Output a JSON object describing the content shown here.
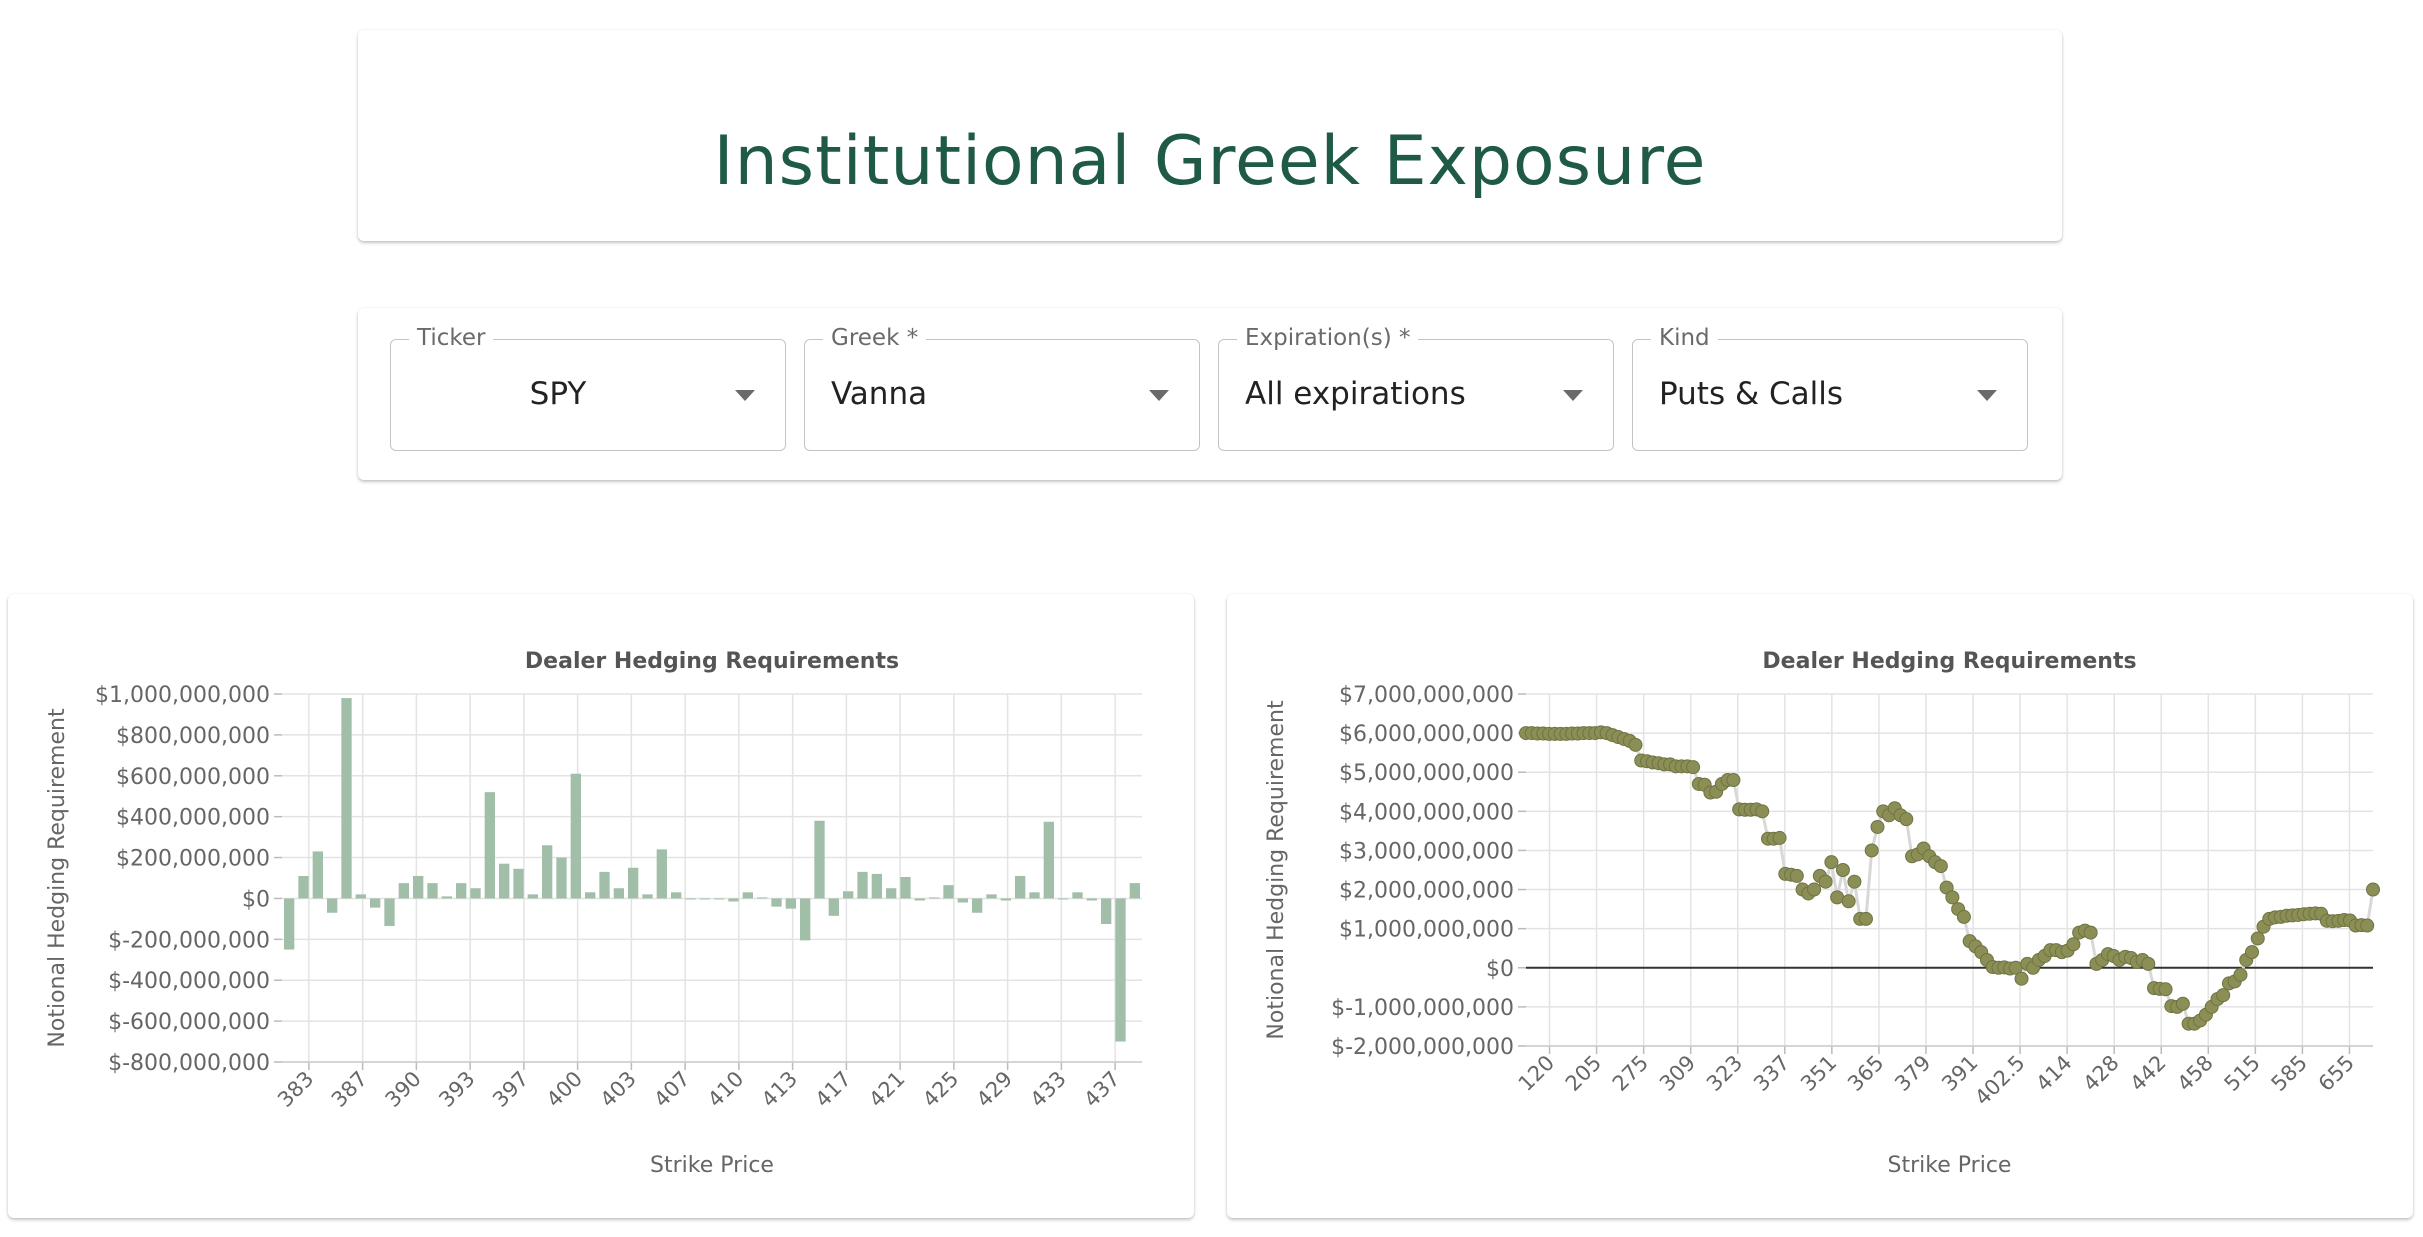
{
  "header": {
    "title": "Institutional Greek Exposure"
  },
  "filters": {
    "ticker": {
      "label": "Ticker",
      "value": "SPY"
    },
    "greek": {
      "label": "Greek *",
      "value": "Vanna"
    },
    "expiration": {
      "label": "Expiration(s) *",
      "value": "All expirations"
    },
    "kind": {
      "label": "Kind",
      "value": "Puts & Calls"
    }
  },
  "colors": {
    "title": "#1e5a45",
    "bar": "#a1bfa8",
    "dot": "#8b8f55",
    "dot_line": "#d8d8d8"
  },
  "chart_data": [
    {
      "type": "bar",
      "title": "Dealer Hedging Requirements",
      "xlabel": "Strike Price",
      "ylabel": "Notional Hedging Requirement",
      "ylim": [
        -800000000,
        1000000000
      ],
      "y_ticks": [
        "$1,000,000,000",
        "$800,000,000",
        "$600,000,000",
        "$400,000,000",
        "$200,000,000",
        "$0",
        "$-200,000,000",
        "$-400,000,000",
        "$-600,000,000",
        "$-800,000,000"
      ],
      "x_ticks": [
        "383",
        "387",
        "390",
        "393",
        "397",
        "400",
        "403",
        "407",
        "410",
        "413",
        "417",
        "421",
        "425",
        "429",
        "433",
        "437"
      ],
      "grid": true,
      "values": [
        -250000000,
        110000000,
        230000000,
        -70000000,
        980000000,
        20000000,
        -45000000,
        -135000000,
        75000000,
        110000000,
        75000000,
        10000000,
        75000000,
        50000000,
        520000000,
        170000000,
        145000000,
        20000000,
        260000000,
        200000000,
        610000000,
        30000000,
        130000000,
        50000000,
        150000000,
        20000000,
        240000000,
        30000000,
        0,
        0,
        0,
        -15000000,
        30000000,
        5000000,
        -40000000,
        -50000000,
        -205000000,
        380000000,
        -85000000,
        35000000,
        130000000,
        120000000,
        50000000,
        105000000,
        -10000000,
        5000000,
        65000000,
        -20000000,
        -70000000,
        20000000,
        -10000000,
        110000000,
        30000000,
        375000000,
        0,
        30000000,
        -10000000,
        -125000000,
        -700000000,
        75000000
      ]
    },
    {
      "type": "scatter",
      "title": "Dealer Hedging Requirements",
      "xlabel": "Strike Price",
      "ylabel": "Notional Hedging Requirement",
      "ylim": [
        -2000000000,
        7000000000
      ],
      "y_ticks": [
        "$7,000,000,000",
        "$6,000,000,000",
        "$5,000,000,000",
        "$4,000,000,000",
        "$3,000,000,000",
        "$2,000,000,000",
        "$1,000,000,000",
        "$0",
        "$-1,000,000,000",
        "$-2,000,000,000"
      ],
      "x_ticks": [
        "120",
        "205",
        "275",
        "309",
        "323",
        "337",
        "351",
        "365",
        "379",
        "391",
        "402.5",
        "414",
        "428",
        "442",
        "458",
        "515",
        "585",
        "655"
      ],
      "grid": true,
      "values": [
        6000000000,
        6000000000,
        5990000000,
        5990000000,
        5980000000,
        5980000000,
        5980000000,
        5980000000,
        5990000000,
        5990000000,
        6000000000,
        6000000000,
        6000000000,
        6020000000,
        6000000000,
        5950000000,
        5900000000,
        5850000000,
        5800000000,
        5700000000,
        5300000000,
        5280000000,
        5250000000,
        5230000000,
        5200000000,
        5200000000,
        5150000000,
        5150000000,
        5150000000,
        5130000000,
        4700000000,
        4680000000,
        4480000000,
        4500000000,
        4700000000,
        4800000000,
        4800000000,
        4050000000,
        4040000000,
        4040000000,
        4050000000,
        4000000000,
        3300000000,
        3300000000,
        3320000000,
        2400000000,
        2380000000,
        2350000000,
        2000000000,
        1900000000,
        2000000000,
        2350000000,
        2200000000,
        2700000000,
        1800000000,
        2500000000,
        1700000000,
        2200000000,
        1250000000,
        1250000000,
        3000000000,
        3600000000,
        4000000000,
        3900000000,
        4080000000,
        3900000000,
        3800000000,
        2850000000,
        2900000000,
        3050000000,
        2850000000,
        2700000000,
        2600000000,
        2050000000,
        1800000000,
        1500000000,
        1300000000,
        680000000,
        550000000,
        400000000,
        200000000,
        20000000,
        0,
        10000000,
        -20000000,
        0,
        -280000000,
        100000000,
        0,
        200000000,
        300000000,
        450000000,
        450000000,
        400000000,
        440000000,
        600000000,
        900000000,
        950000000,
        900000000,
        100000000,
        200000000,
        350000000,
        300000000,
        200000000,
        280000000,
        250000000,
        150000000,
        200000000,
        100000000,
        -520000000,
        -540000000,
        -550000000,
        -980000000,
        -1000000000,
        -920000000,
        -1430000000,
        -1430000000,
        -1350000000,
        -1200000000,
        -1000000000,
        -800000000,
        -700000000,
        -400000000,
        -350000000,
        -180000000,
        200000000,
        400000000,
        750000000,
        1050000000,
        1250000000,
        1290000000,
        1300000000,
        1330000000,
        1340000000,
        1350000000,
        1370000000,
        1380000000,
        1390000000,
        1380000000,
        1200000000,
        1190000000,
        1200000000,
        1220000000,
        1210000000,
        1080000000,
        1090000000,
        1080000000,
        2000000000
      ]
    }
  ]
}
